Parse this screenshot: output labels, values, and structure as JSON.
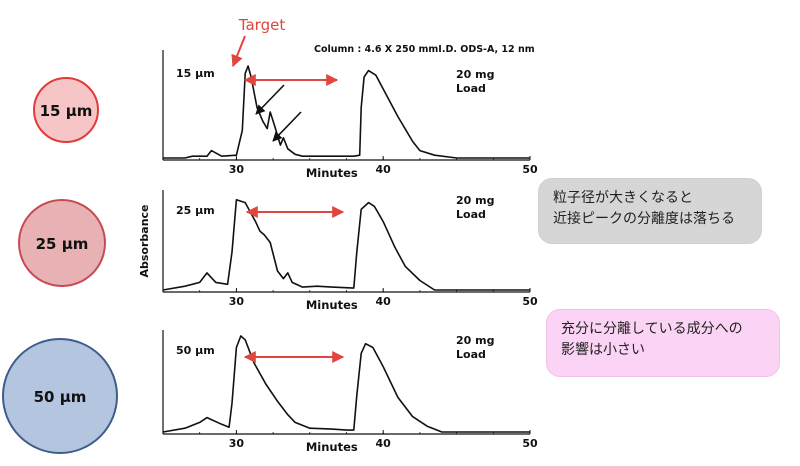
{
  "column_info": "Column : 4.6 X 250 mmI.D. ODS-A, 12 nm",
  "target_label": "Target",
  "notes": {
    "note1_line1": "粒子径が大きくなると",
    "note1_line2": "近接ピークの分離度は落ちる",
    "note2_line1": "充分に分離している成分への",
    "note2_line2": "影響は小さい"
  },
  "colors": {
    "accent_red": "#e0453e",
    "trace": "#111111",
    "circle_15_fill": "#f6c5c5",
    "circle_15_stroke": "#e33a3a",
    "circle_25_fill": "#e8b2b4",
    "circle_25_stroke": "#c64a52",
    "circle_50_fill": "#b3c5df",
    "circle_50_stroke": "#3f5d8a"
  },
  "chart_data": [
    {
      "type": "line",
      "title": "15 µm",
      "particle_size_label": "15 µm",
      "load": [
        "20 mg",
        "Load"
      ],
      "xlabel": "Minutes",
      "ylabel": "",
      "xlim": [
        25,
        50
      ],
      "ylim": [
        0,
        100
      ],
      "xticks": [
        30,
        40,
        50
      ],
      "series": [
        {
          "name": "15 µm",
          "x": [
            25.0,
            26.5,
            27.0,
            28.0,
            28.3,
            29.0,
            30.0,
            30.4,
            30.6,
            30.8,
            31.0,
            31.4,
            31.8,
            32.1,
            32.3,
            32.6,
            33.0,
            33.2,
            33.5,
            34.0,
            34.5,
            35.0,
            37.0,
            38.0,
            38.4,
            38.5,
            38.7,
            39.0,
            39.5,
            40.0,
            41.0,
            42.0,
            42.5,
            43.5,
            45.0,
            50.0
          ],
          "y": [
            0,
            0,
            2,
            2,
            8,
            2,
            3,
            30,
            92,
            100,
            88,
            55,
            40,
            32,
            50,
            35,
            14,
            22,
            10,
            4,
            2,
            2,
            2,
            2,
            3,
            55,
            88,
            95,
            90,
            75,
            45,
            18,
            8,
            3,
            0,
            0
          ]
        }
      ],
      "annotations": [
        "Target"
      ]
    },
    {
      "type": "line",
      "title": "25 µm",
      "particle_size_label": "25 µm",
      "load": [
        "20 mg",
        "Load"
      ],
      "xlabel": "Minutes",
      "ylabel": "Absorbance",
      "xlim": [
        25,
        50
      ],
      "ylim": [
        0,
        100
      ],
      "xticks": [
        30,
        40,
        50
      ],
      "series": [
        {
          "name": "25 µm",
          "x": [
            25.0,
            26.5,
            27.5,
            28.0,
            28.6,
            29.4,
            29.7,
            30.0,
            30.6,
            31.3,
            31.6,
            31.9,
            32.3,
            32.8,
            33.2,
            33.5,
            33.8,
            34.5,
            35.5,
            36.5,
            38.0,
            38.2,
            38.5,
            39.0,
            39.4,
            40.0,
            40.8,
            41.5,
            42.5,
            43.5,
            50.0
          ],
          "y": [
            0,
            4,
            8,
            18,
            8,
            6,
            40,
            95,
            92,
            72,
            62,
            58,
            50,
            20,
            12,
            18,
            8,
            3,
            4,
            3,
            2,
            40,
            85,
            92,
            88,
            72,
            45,
            25,
            10,
            0,
            0
          ]
        }
      ]
    },
    {
      "type": "line",
      "title": "50 µm",
      "particle_size_label": "50 µm",
      "load": [
        "20 mg",
        "Load"
      ],
      "xlabel": "Minutes",
      "ylabel": "",
      "xlim": [
        25,
        50
      ],
      "ylim": [
        0,
        100
      ],
      "xticks": [
        30,
        40,
        50
      ],
      "series": [
        {
          "name": "50 µm",
          "x": [
            25.0,
            26.5,
            27.5,
            28.0,
            29.0,
            29.5,
            29.7,
            30.0,
            30.3,
            30.6,
            31.2,
            32.0,
            32.8,
            33.5,
            34.0,
            35.0,
            36.5,
            37.5,
            38.0,
            38.2,
            38.5,
            38.8,
            39.3,
            40.0,
            41.0,
            42.0,
            43.0,
            44.0,
            50.0
          ],
          "y": [
            0,
            4,
            10,
            15,
            8,
            5,
            30,
            88,
            100,
            96,
            72,
            50,
            32,
            18,
            10,
            4,
            3,
            2,
            2,
            38,
            82,
            92,
            88,
            68,
            36,
            16,
            6,
            0,
            0
          ]
        }
      ]
    }
  ],
  "size_circles": [
    {
      "label": "15 µm",
      "fill": "#f6c5c5",
      "stroke": "#e33a3a"
    },
    {
      "label": "25 µm",
      "fill": "#e8b2b4",
      "stroke": "#c64a52"
    },
    {
      "label": "50 µm",
      "fill": "#b3c5df",
      "stroke": "#3f5d8a"
    }
  ]
}
